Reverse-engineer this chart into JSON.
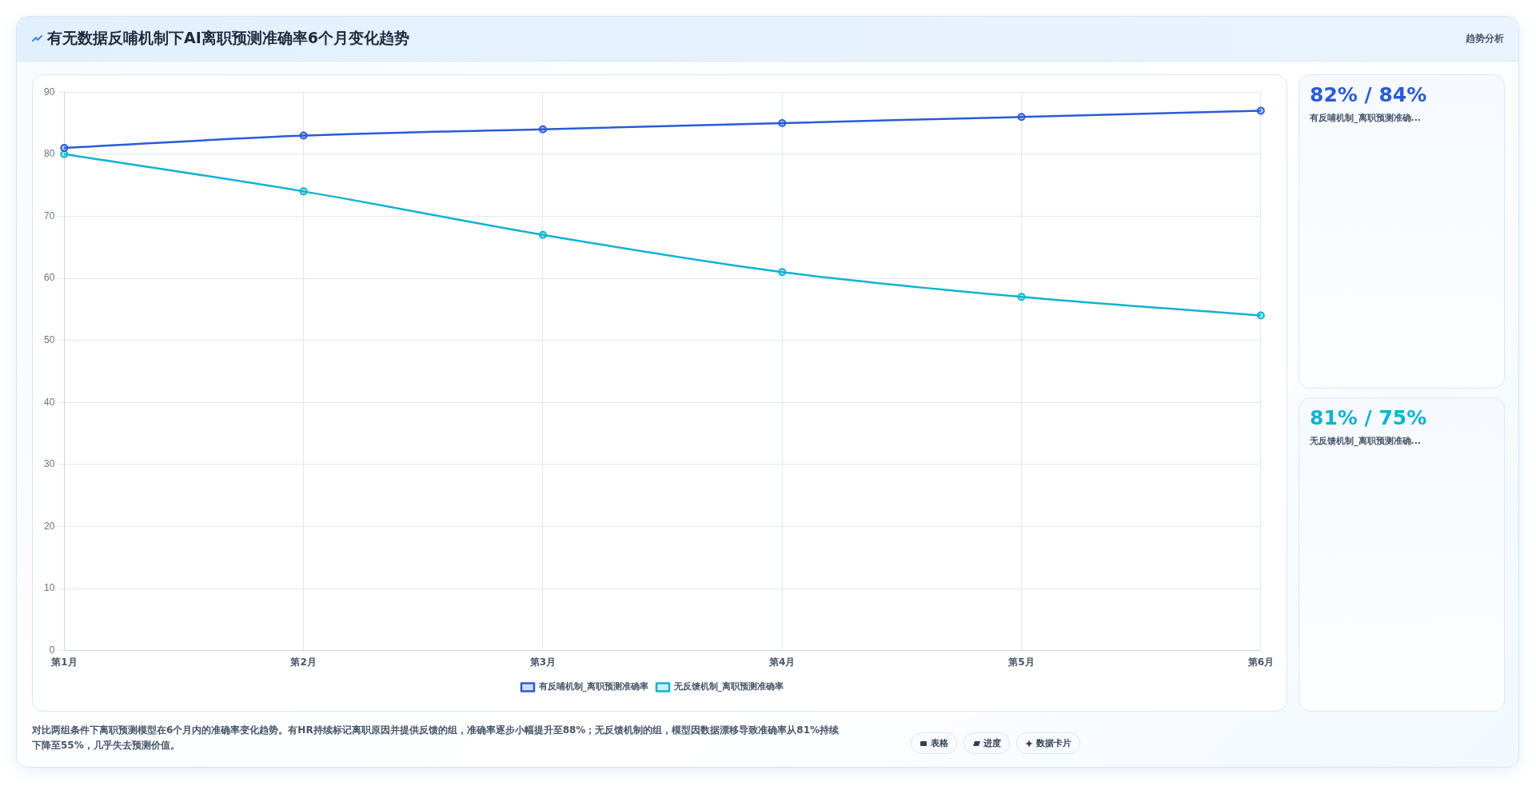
{
  "chart_data": [
    {
      "type": "line",
      "title": "有无数据反哺机制下AI离职预测准确率6个月变化趋势",
      "categories": [
        "第1月",
        "第2月",
        "第3月",
        "第4月",
        "第5月",
        "第6月"
      ],
      "series": [
        {
          "name": "有反哺机制_离职预测准确率",
          "color": "#2a5bd7",
          "values": [
            81,
            83,
            84,
            85,
            86,
            87
          ]
        },
        {
          "name": "无反馈机制_离职预测准确率",
          "color": "#0fb3cf",
          "values": [
            80,
            74,
            67,
            61,
            57,
            54
          ]
        }
      ],
      "ylim": [
        0,
        90
      ],
      "yticks": [
        0,
        10,
        20,
        30,
        40,
        50,
        60,
        70,
        80,
        90
      ],
      "grid": true,
      "legend": "bottom",
      "marker": "circle",
      "line_style": "solid",
      "annotations": [
        "趋势分析",
        "对比两组条件下离职预测模型在6个月内的准确率变化趋势。有HR持续标记离职原因并提供反馈的组，准确率逐步小幅提升至88%；无反馈机制的组，模型因数据漂移导致准确率从81%持续下降至55%，几乎失去预测价值。",
        "表格",
        "进度",
        "数据卡片"
      ]
    },
    {
      "type": "other",
      "title": "82% / 84%",
      "subtitle": "有反哺机制_离职预测准确...",
      "color": "#2a5bd7"
    },
    {
      "type": "other",
      "title": "81% / 75%",
      "subtitle": "无反馈机制_离职预测准确...",
      "color": "#0fb3cf"
    }
  ]
}
